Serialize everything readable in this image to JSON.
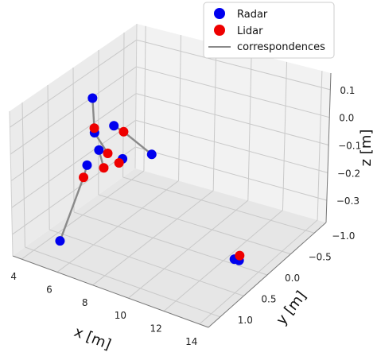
{
  "chart_data": {
    "type": "scatter",
    "projection": "3d",
    "title": "",
    "xlabel": "x [m]",
    "ylabel": "y [m]",
    "zlabel": "z [m]",
    "x_ticks": [
      "4",
      "6",
      "8",
      "10",
      "12",
      "14"
    ],
    "y_ticks": [
      "−1.0",
      "−0.5",
      "0.0",
      "0.5",
      "1.0"
    ],
    "z_ticks": [
      "−0.3",
      "−0.2",
      "−0.1",
      "0.0",
      "0.1"
    ],
    "grid": true,
    "legend_position": "top-right",
    "legend": [
      {
        "label": "Radar",
        "marker": "circle",
        "color": "#0000ee"
      },
      {
        "label": "Lidar",
        "marker": "circle",
        "color": "#ee0000"
      },
      {
        "label": "correspondences",
        "marker": "line",
        "color": "#8a8a8a"
      }
    ],
    "colors": {
      "radar": "#0000ee",
      "lidar": "#ee0000",
      "line": "#8a8a8a"
    },
    "series": [
      {
        "name": "Radar",
        "points": [
          {
            "x": 9.0,
            "y": 1.0,
            "z": 0.08
          },
          {
            "x": 6.6,
            "y": 0.3,
            "z": 0.05
          },
          {
            "x": 4.0,
            "y": -0.2,
            "z": 0.03
          },
          {
            "x": 5.5,
            "y": 0.3,
            "z": 0.0
          },
          {
            "x": 6.3,
            "y": 0.5,
            "z": -0.02
          },
          {
            "x": 8.2,
            "y": 0.1,
            "z": -0.05
          },
          {
            "x": 4.8,
            "y": 0.2,
            "z": -0.15
          },
          {
            "x": 5.2,
            "y": 0.9,
            "z": -0.33
          },
          {
            "x": 12.9,
            "y": 0.1,
            "z": -0.34
          },
          {
            "x": 12.9,
            "y": 0.0,
            "z": -0.36
          }
        ]
      },
      {
        "name": "Lidar",
        "points": [
          {
            "x": 8.8,
            "y": 1.0,
            "z": 0.06
          },
          {
            "x": 7.7,
            "y": 0.5,
            "z": 0.08
          },
          {
            "x": 4.1,
            "y": -0.2,
            "z": -0.08
          },
          {
            "x": 5.7,
            "y": 0.1,
            "z": -0.1
          },
          {
            "x": 6.3,
            "y": 0.4,
            "z": -0.1
          },
          {
            "x": 4.6,
            "y": 0.2,
            "z": -0.2
          },
          {
            "x": 13.2,
            "y": 0.1,
            "z": -0.32
          }
        ]
      }
    ],
    "correspondences": [
      [
        [
          9.0,
          1.0,
          0.08
        ],
        [
          8.8,
          1.0,
          0.06
        ]
      ],
      [
        [
          6.6,
          0.3,
          0.05
        ],
        [
          7.7,
          0.5,
          0.08
        ]
      ],
      [
        [
          4.0,
          -0.2,
          0.03
        ],
        [
          4.1,
          -0.2,
          -0.08
        ]
      ],
      [
        [
          5.5,
          0.3,
          0.0
        ],
        [
          5.7,
          0.1,
          -0.1
        ]
      ],
      [
        [
          6.3,
          0.5,
          -0.02
        ],
        [
          6.3,
          0.4,
          -0.1
        ]
      ],
      [
        [
          8.2,
          0.1,
          -0.05
        ],
        [
          7.7,
          0.5,
          0.08
        ]
      ],
      [
        [
          4.8,
          0.2,
          -0.15
        ],
        [
          4.6,
          0.2,
          -0.2
        ]
      ],
      [
        [
          5.2,
          0.9,
          -0.33
        ],
        [
          4.6,
          0.2,
          -0.2
        ]
      ],
      [
        [
          12.9,
          0.1,
          -0.34
        ],
        [
          13.2,
          0.1,
          -0.32
        ]
      ]
    ]
  }
}
